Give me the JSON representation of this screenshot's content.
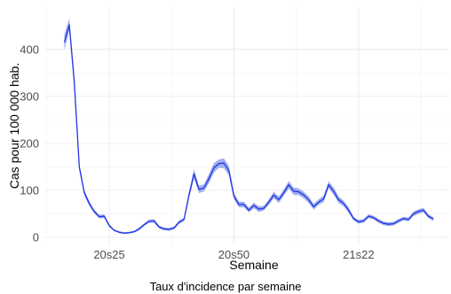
{
  "chart_data": {
    "type": "line",
    "title": "",
    "xlabel": "Semaine",
    "ylabel": "Cas pour 100 000 hab.",
    "caption": "Taux d'incidence par semaine",
    "x_index_range": [
      1,
      82
    ],
    "ylim": [
      -15,
      490
    ],
    "x_ticks": [
      {
        "index": 14,
        "label": "20s25"
      },
      {
        "index": 39,
        "label": "20s50"
      },
      {
        "index": 64,
        "label": "21s22"
      }
    ],
    "y_ticks": [
      0,
      100,
      200,
      300,
      400
    ],
    "grid": true,
    "line_color": "#2432e6",
    "band_color": "#7f95e8",
    "series": [
      {
        "values": [
          415,
          452,
          330,
          150,
          95,
          72,
          55,
          44,
          45,
          25,
          15,
          11,
          9,
          10,
          12,
          18,
          27,
          34,
          35,
          22,
          18,
          17,
          20,
          32,
          38,
          90,
          135,
          102,
          105,
          125,
          148,
          157,
          158,
          142,
          88,
          70,
          70,
          58,
          68,
          60,
          62,
          75,
          90,
          80,
          95,
          112,
          98,
          97,
          90,
          80,
          65,
          75,
          82,
          112,
          98,
          80,
          72,
          58,
          40,
          33,
          35,
          45,
          42,
          35,
          30,
          28,
          29,
          35,
          40,
          38,
          50,
          55,
          58,
          45,
          39
        ],
        "lower": [
          398,
          440,
          318,
          143,
          89,
          67,
          51,
          40,
          41,
          22,
          13,
          9,
          7,
          8,
          10,
          15,
          24,
          31,
          31,
          19,
          15,
          14,
          17,
          29,
          34,
          83,
          125,
          94,
          98,
          115,
          138,
          148,
          147,
          132,
          81,
          64,
          64,
          53,
          62,
          54,
          57,
          69,
          83,
          73,
          88,
          104,
          90,
          90,
          83,
          73,
          59,
          69,
          75,
          105,
          90,
          73,
          66,
          52,
          36,
          29,
          31,
          41,
          38,
          31,
          26,
          24,
          25,
          31,
          36,
          34,
          45,
          50,
          53,
          41,
          35
        ],
        "upper": [
          432,
          466,
          342,
          157,
          101,
          77,
          59,
          48,
          49,
          28,
          17,
          13,
          11,
          12,
          14,
          21,
          30,
          38,
          39,
          25,
          21,
          20,
          23,
          36,
          42,
          97,
          145,
          110,
          113,
          135,
          158,
          166,
          168,
          152,
          95,
          76,
          76,
          63,
          74,
          66,
          67,
          81,
          97,
          87,
          102,
          120,
          106,
          104,
          97,
          87,
          71,
          81,
          89,
          119,
          106,
          87,
          78,
          64,
          44,
          37,
          39,
          49,
          46,
          39,
          34,
          32,
          33,
          39,
          44,
          42,
          55,
          60,
          63,
          49,
          43
        ]
      }
    ]
  }
}
